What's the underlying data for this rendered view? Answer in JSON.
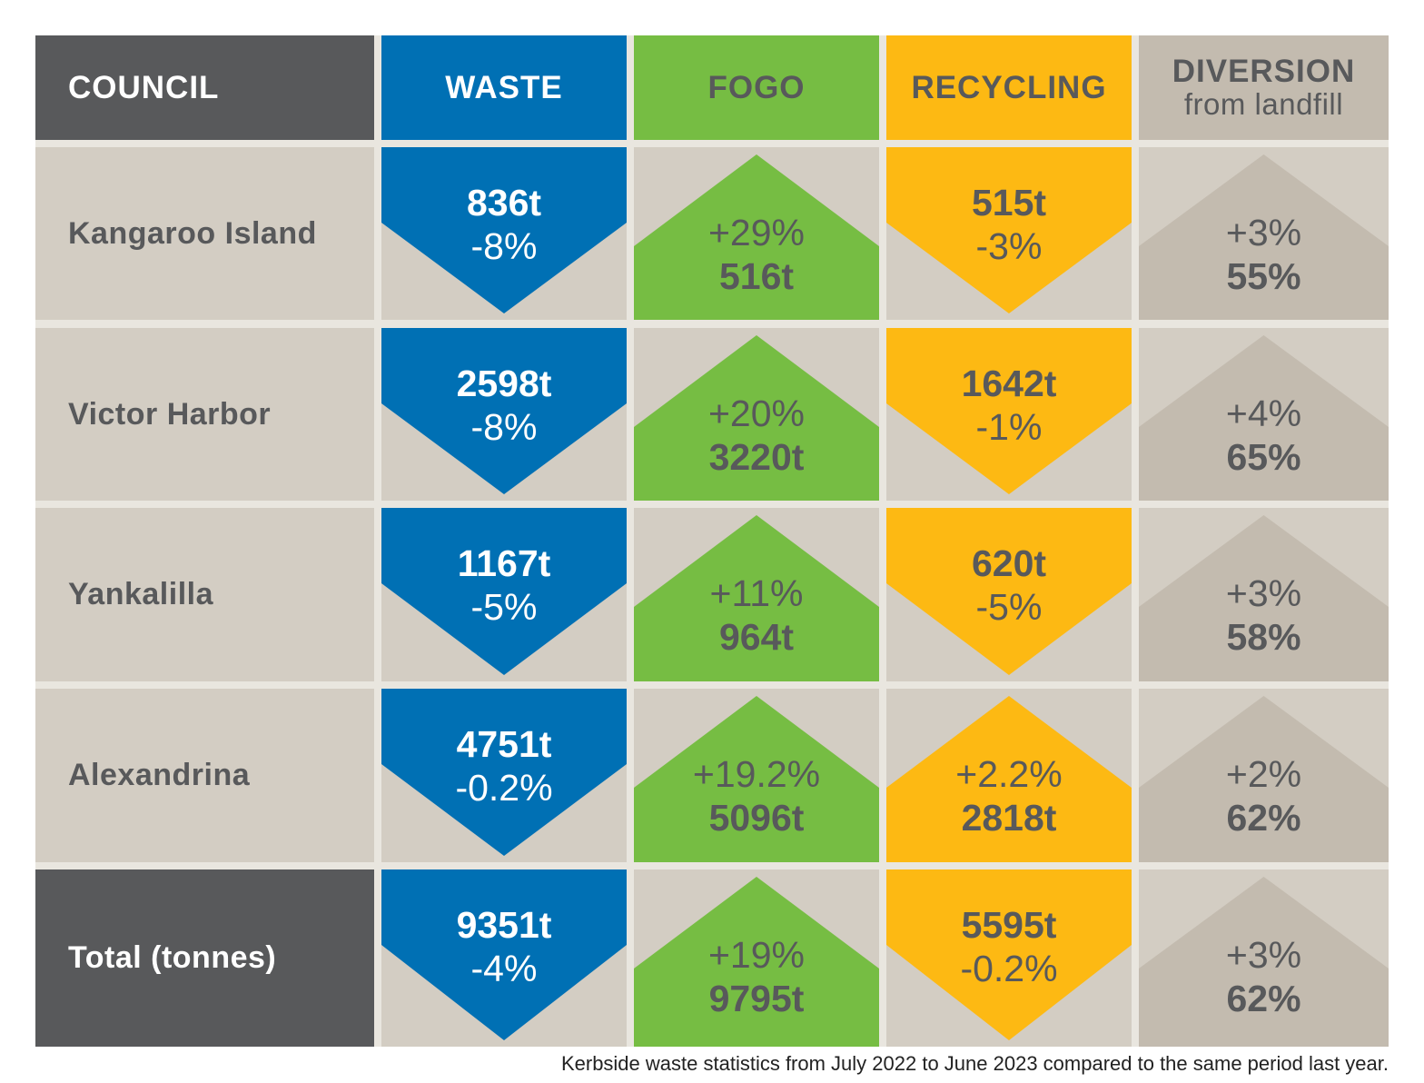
{
  "colors": {
    "waste": "#0070b4",
    "fogo": "#76bd43",
    "recycling": "#fdb913",
    "diversion": "#c3bbaf",
    "cell_bg": "#d3cdc3",
    "dark": "#58595b",
    "gap": "#e9e6df"
  },
  "headers": {
    "council": "COUNCIL",
    "waste": "WASTE",
    "fogo": "FOGO",
    "recycling": "RECYCLING",
    "diversion": "DIVERSION",
    "diversion_sub": "from landfill"
  },
  "rows": [
    {
      "council": "Kangaroo Island",
      "waste": {
        "tonnes": "836t",
        "change": "-8%",
        "direction": "down"
      },
      "fogo": {
        "tonnes": "516t",
        "change": "+29%",
        "direction": "up"
      },
      "recycling": {
        "tonnes": "515t",
        "change": "-3%",
        "direction": "down"
      },
      "diversion": {
        "rate": "55%",
        "change": "+3%",
        "direction": "up"
      }
    },
    {
      "council": "Victor Harbor",
      "waste": {
        "tonnes": "2598t",
        "change": "-8%",
        "direction": "down"
      },
      "fogo": {
        "tonnes": "3220t",
        "change": "+20%",
        "direction": "up"
      },
      "recycling": {
        "tonnes": "1642t",
        "change": "-1%",
        "direction": "down"
      },
      "diversion": {
        "rate": "65%",
        "change": "+4%",
        "direction": "up"
      }
    },
    {
      "council": "Yankalilla",
      "waste": {
        "tonnes": "1167t",
        "change": "-5%",
        "direction": "down"
      },
      "fogo": {
        "tonnes": "964t",
        "change": "+11%",
        "direction": "up"
      },
      "recycling": {
        "tonnes": "620t",
        "change": "-5%",
        "direction": "down"
      },
      "diversion": {
        "rate": "58%",
        "change": "+3%",
        "direction": "up"
      }
    },
    {
      "council": "Alexandrina",
      "waste": {
        "tonnes": "4751t",
        "change": "-0.2%",
        "direction": "down"
      },
      "fogo": {
        "tonnes": "5096t",
        "change": "+19.2%",
        "direction": "up"
      },
      "recycling": {
        "tonnes": "2818t",
        "change": "+2.2%",
        "direction": "up"
      },
      "diversion": {
        "rate": "62%",
        "change": "+2%",
        "direction": "up"
      }
    },
    {
      "council": "Total (tonnes)",
      "total": true,
      "waste": {
        "tonnes": "9351t",
        "change": "-4%",
        "direction": "down"
      },
      "fogo": {
        "tonnes": "9795t",
        "change": "+19%",
        "direction": "up"
      },
      "recycling": {
        "tonnes": "5595t",
        "change": "-0.2%",
        "direction": "down"
      },
      "diversion": {
        "rate": "62%",
        "change": "+3%",
        "direction": "up"
      }
    }
  ],
  "caption": "Kerbside waste statistics from July 2022 to June 2023 compared to the same period last year."
}
